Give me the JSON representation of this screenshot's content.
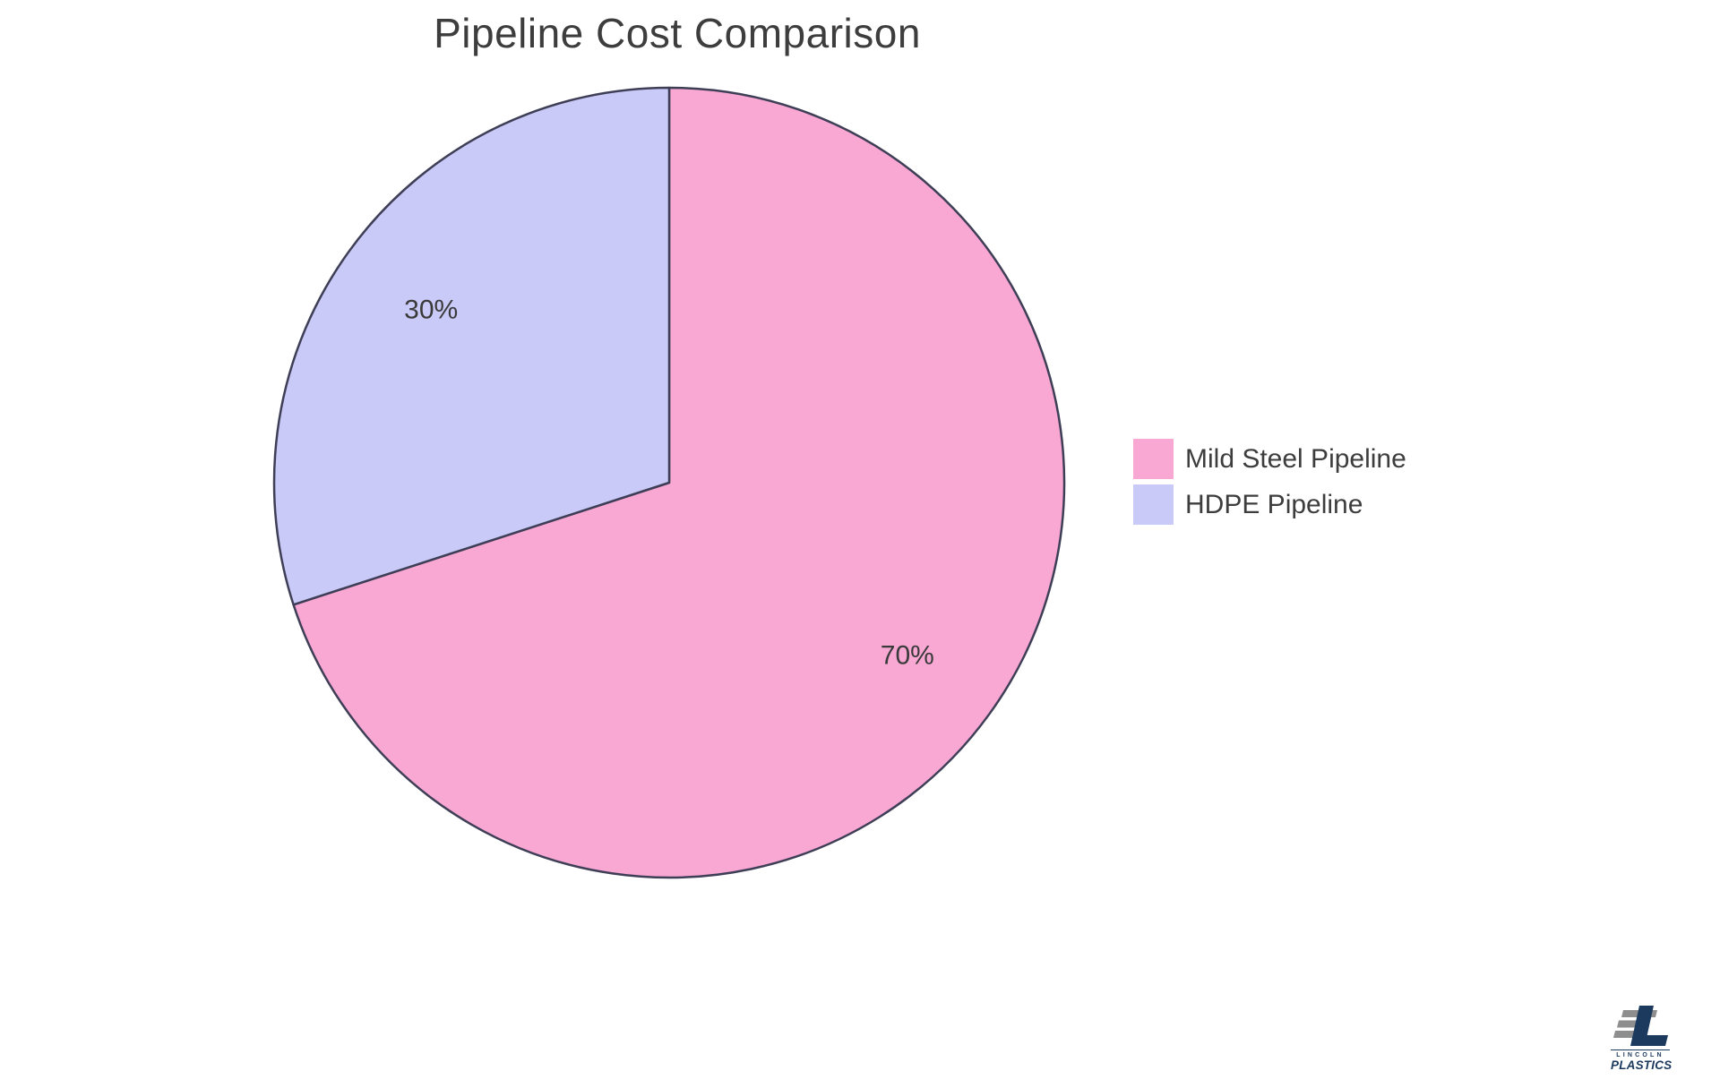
{
  "title": "Pipeline Cost Comparison",
  "chart_data": {
    "type": "pie",
    "title": "Pipeline Cost Comparison",
    "labels": [
      "Mild Steel Pipeline",
      "HDPE Pipeline"
    ],
    "values": [
      70,
      30
    ],
    "slice_labels": [
      "70%",
      "30%"
    ],
    "colors": [
      "#F9A8D4",
      "#CACAF8"
    ],
    "start_angle": "top",
    "direction": "clockwise",
    "legend_position": "right",
    "label_radius_ratio": 0.745
  },
  "colors": {
    "background": "#FFFFFF",
    "slice_border": "#3E3E56",
    "title_text": "#3D3D3D",
    "label_text": "#3A3A3A",
    "legend_text": "#3D3D3D",
    "logo_navy": "#1C3A5E",
    "logo_gray": "#8E8E8E"
  },
  "legend": {
    "items": [
      {
        "label": "Mild Steel Pipeline",
        "color": "#F9A8D4"
      },
      {
        "label": "HDPE Pipeline",
        "color": "#CACAF8"
      }
    ]
  },
  "logo": {
    "line1": "LINCOLN",
    "line2": "PLASTICS"
  }
}
